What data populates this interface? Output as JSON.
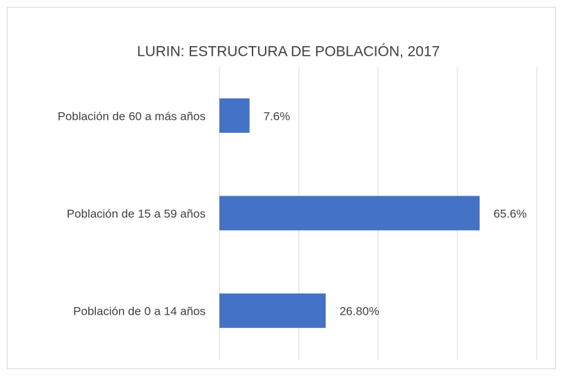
{
  "chart_data": {
    "type": "hbar",
    "title": "LURIN: ESTRUCTURA DE POBLACIÓN, 2017",
    "categories": [
      "Población de 60 a más años",
      "Población de 15 a 59 años",
      "Población de 0 a 14 años"
    ],
    "values": [
      7.6,
      65.6,
      26.8
    ],
    "value_labels": [
      "7.6%",
      "65.6%",
      "26.80%"
    ],
    "color": "#4472c4",
    "xlim": [
      0,
      80
    ],
    "xticks": [
      0,
      20,
      40,
      60,
      80
    ],
    "grid": true
  }
}
